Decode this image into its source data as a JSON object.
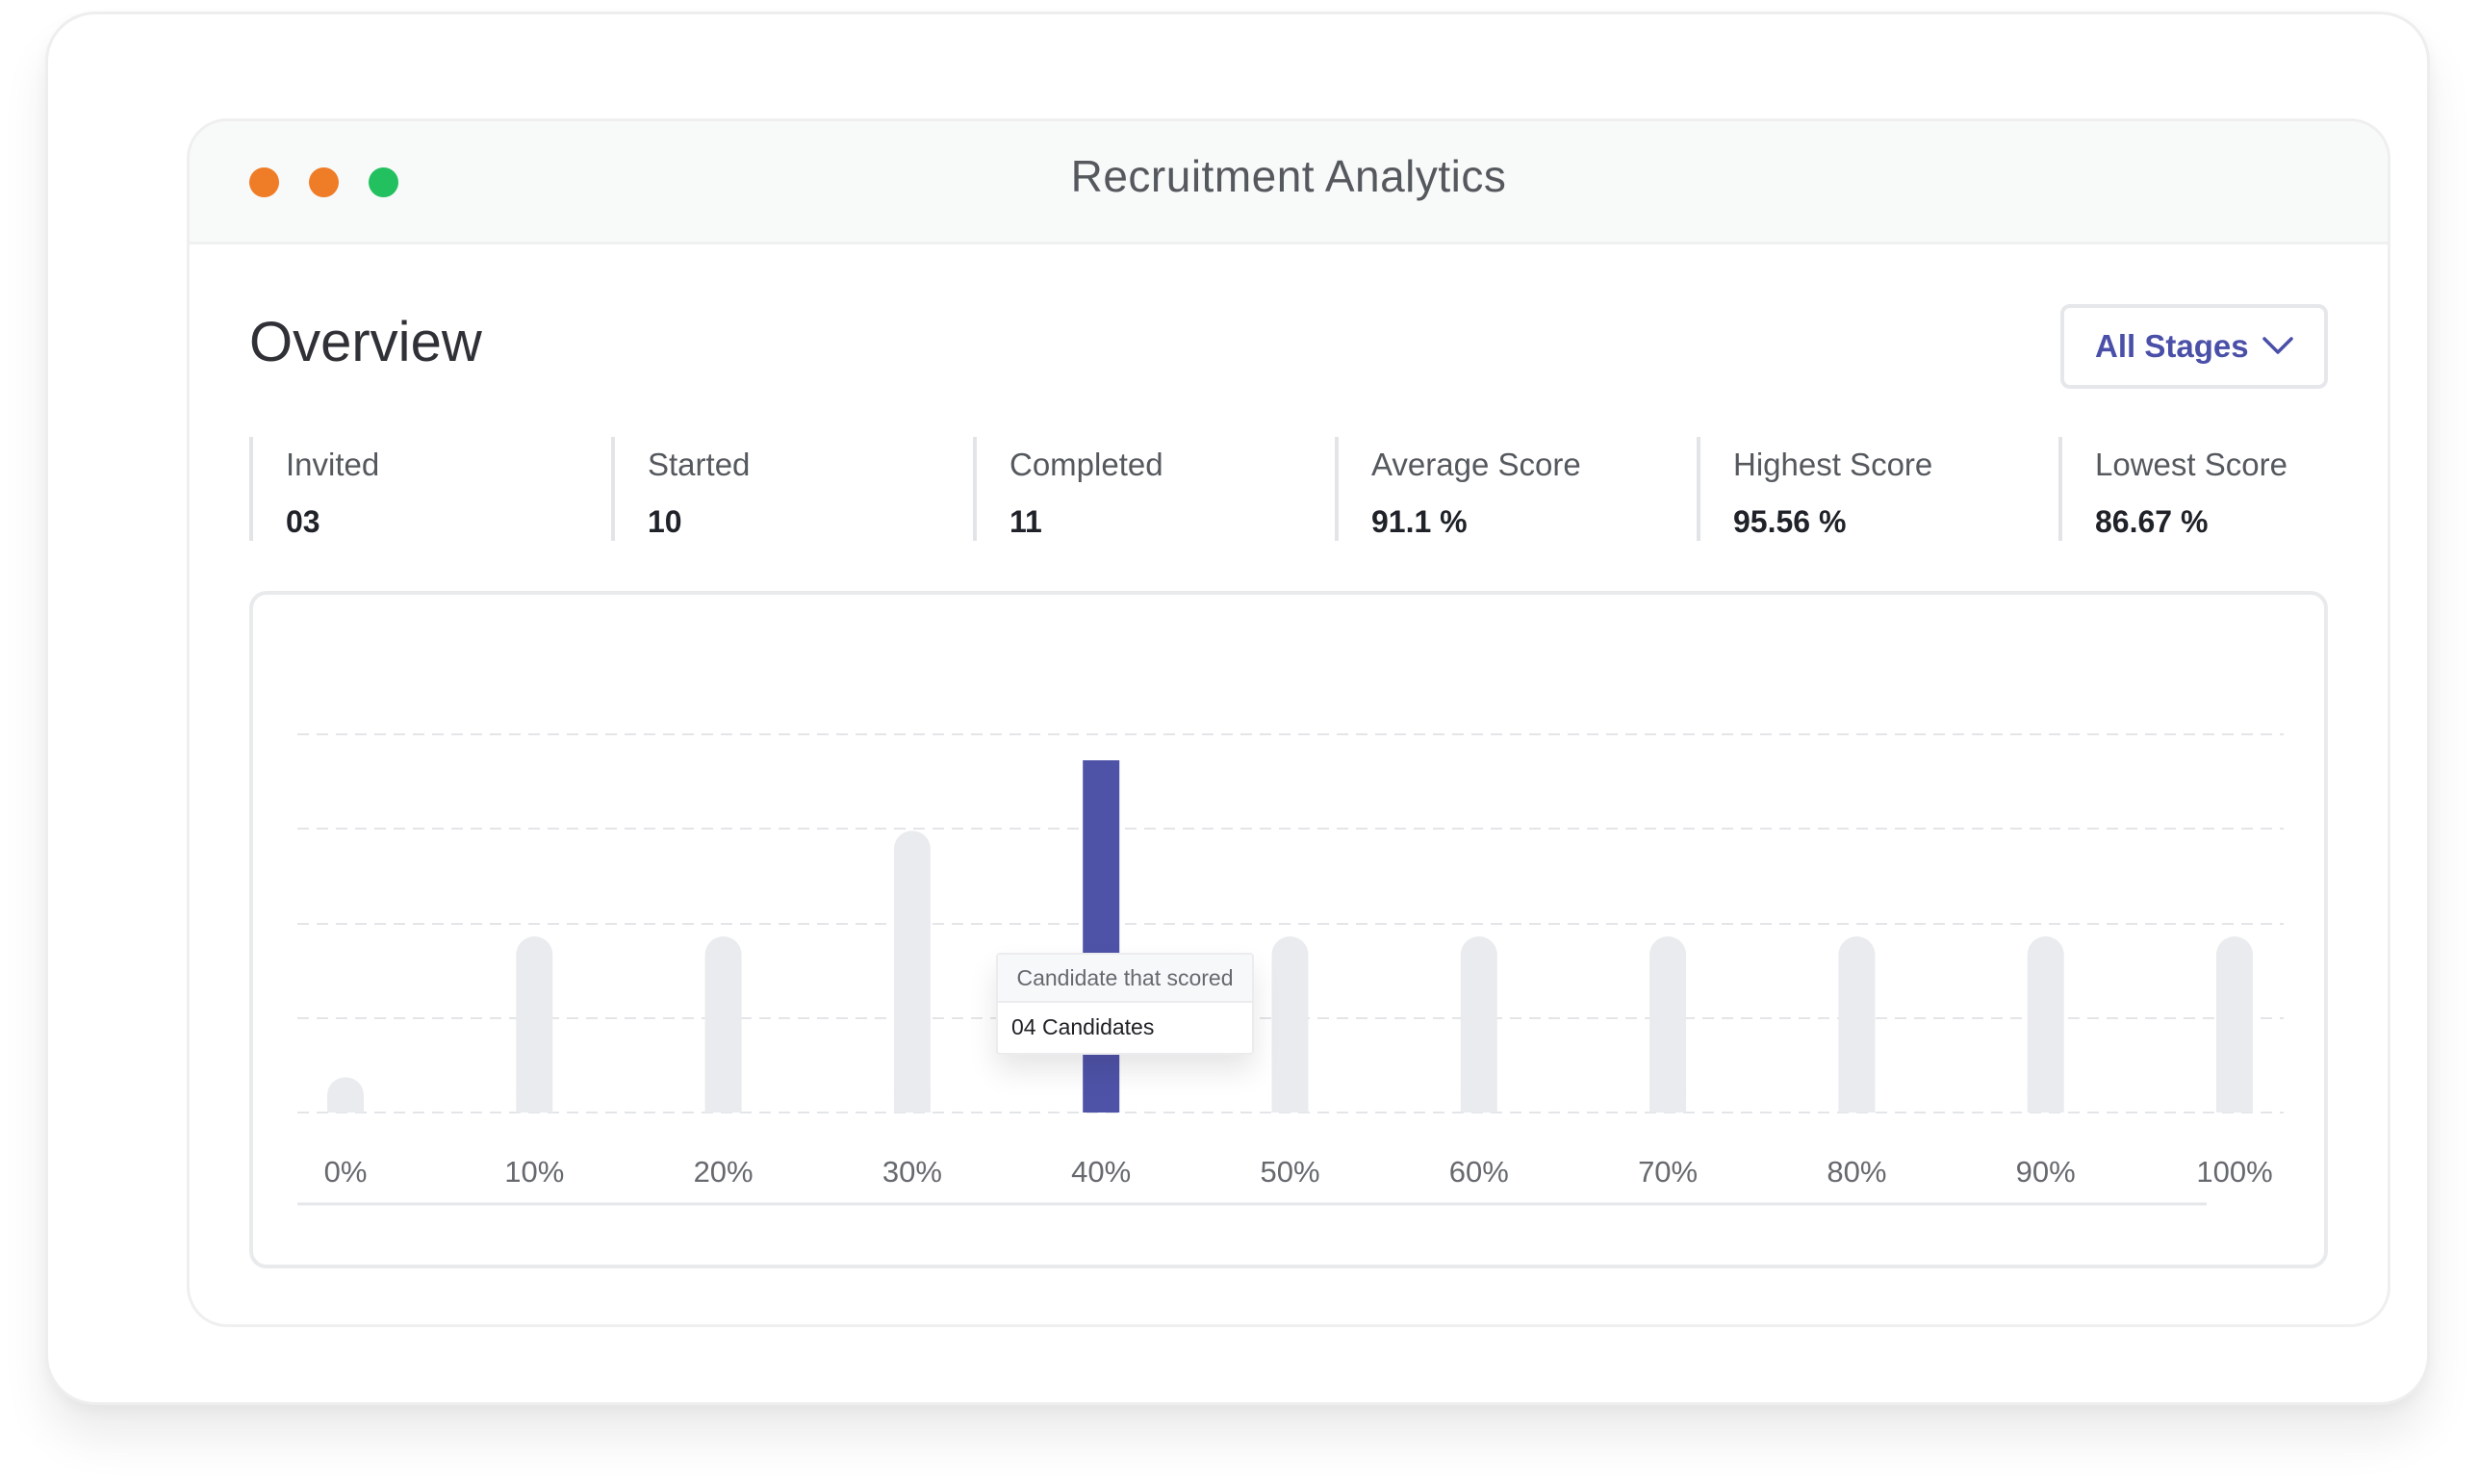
{
  "window": {
    "title": "Recruitment Analytics"
  },
  "overview": {
    "title": "Overview",
    "stage_filter": {
      "label": "All Stages",
      "icon": "chevron-down-icon"
    }
  },
  "stats": [
    {
      "label": "Invited",
      "value": "03"
    },
    {
      "label": "Started",
      "value": "10"
    },
    {
      "label": "Completed",
      "value": "11"
    },
    {
      "label": "Average Score",
      "value": "91.1 %"
    },
    {
      "label": "Highest Score",
      "value": "95.56 %"
    },
    {
      "label": "Lowest Score",
      "value": "86.67 %"
    }
  ],
  "colors": {
    "accent": "#4f53a8",
    "bar_inactive": "#e9ebee",
    "dot_orange": "#ef7c26",
    "dot_green": "#22c05f"
  },
  "tooltip": {
    "title": "Candidate that scored",
    "value": "04 Candidates"
  },
  "chart_data": {
    "type": "bar",
    "categories": [
      "0%",
      "10%",
      "20%",
      "30%",
      "40%",
      "50%",
      "60%",
      "70%",
      "80%",
      "90%",
      "100%"
    ],
    "values": [
      0.4,
      2,
      2,
      3.2,
      4,
      2,
      2,
      2,
      2,
      2,
      2
    ],
    "highlighted_category": "40%",
    "ylim": [
      0,
      4
    ],
    "gridlines": true,
    "grid_style": "dashed",
    "xlabel": "",
    "ylabel": ""
  }
}
